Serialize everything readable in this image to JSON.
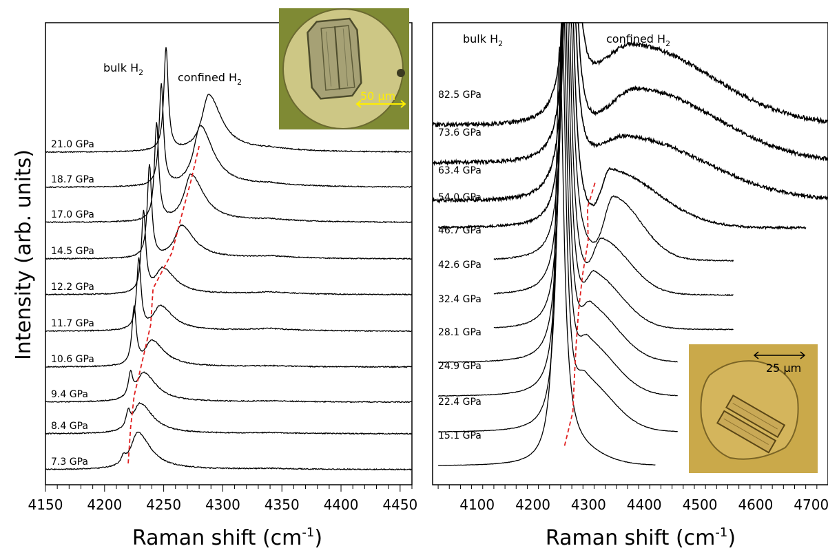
{
  "colors": {
    "trace": "#000000",
    "guide": "#e02020",
    "scalebar_left": "#ffee00",
    "scalebar_right": "#000000",
    "micrograph_left_bg": "#c9c07a",
    "micrograph_right_bg": "#c8a84a"
  },
  "chart_data": [
    {
      "type": "line",
      "title": "",
      "xlabel": "Raman shift (cm-1)",
      "xlabel_main": "Raman shift (cm",
      "xlabel_sup": "-1",
      "xlabel_close": ")",
      "ylabel": "Intensity (arb. units)",
      "xlim": [
        4150,
        4460
      ],
      "xticks": [
        "4150",
        "4200",
        "4250",
        "4300",
        "4350",
        "4400",
        "4450"
      ],
      "annotations": {
        "bulk": "bulk H",
        "bulk_sub": "2",
        "confined": "confined H",
        "confined_sub": "2"
      },
      "inset": {
        "scalebar_label": "50 μm"
      },
      "pressures": [
        "21.0 GPa",
        "18.7  GPa",
        "17.0 GPa",
        "14.5 GPa",
        "12.2 GPa",
        "11.7 GPa",
        "10.6 GPa",
        "9.4 GPa",
        "8.4 GPa",
        "7.3 GPa"
      ],
      "series": [
        {
          "label": "21.0 GPa",
          "x_range": [
            4150,
            4460
          ],
          "bulk_peak": 4252,
          "bulk_height": 5.0,
          "confined_peak": 4288,
          "confined_height": 2.75
        },
        {
          "label": "18.7  GPa",
          "x_range": [
            4150,
            4460
          ],
          "bulk_peak": 4248,
          "bulk_height": 4.9,
          "confined_peak": 4281,
          "confined_height": 2.95
        },
        {
          "label": "17.0 GPa",
          "x_range": [
            4150,
            4460
          ],
          "bulk_peak": 4244,
          "bulk_height": 4.7,
          "confined_peak": 4273,
          "confined_height": 2.3
        },
        {
          "label": "14.5 GPa",
          "x_range": [
            4150,
            4460
          ],
          "bulk_peak": 4238,
          "bulk_height": 4.5,
          "confined_peak": 4265,
          "confined_height": 1.6
        },
        {
          "label": "12.2 GPa",
          "x_range": [
            4150,
            4460
          ],
          "bulk_peak": 4233,
          "bulk_height": 3.9,
          "confined_peak": 4249,
          "confined_height": 1.25
        },
        {
          "label": "11.7 GPa",
          "x_range": [
            4150,
            4460
          ],
          "bulk_peak": 4229,
          "bulk_height": 3.4,
          "confined_peak": 4247,
          "confined_height": 1.2
        },
        {
          "label": "10.6 GPa",
          "x_range": [
            4150,
            4460
          ],
          "bulk_peak": 4225,
          "bulk_height": 2.75,
          "confined_peak": 4240,
          "confined_height": 1.25
        },
        {
          "label": "9.4 GPa",
          "x_range": [
            4150,
            4460
          ],
          "bulk_peak": 4222,
          "bulk_height": 1.15,
          "confined_peak": 4233,
          "confined_height": 1.4
        },
        {
          "label": "8.4 GPa",
          "x_range": [
            4150,
            4460
          ],
          "bulk_peak": 4220,
          "bulk_height": 0.75,
          "confined_peak": 4230,
          "confined_height": 1.45
        },
        {
          "label": "7.3 GPa",
          "x_range": [
            4150,
            4460
          ],
          "bulk_peak": 4216,
          "bulk_height": 0.35,
          "confined_peak": 4228,
          "confined_height": 1.8
        }
      ]
    },
    {
      "type": "line",
      "title": "",
      "xlabel": "Raman shift (cm-1)",
      "xlabel_main": "Raman shift (cm",
      "xlabel_sup": "-1",
      "xlabel_close": ")",
      "xlim": [
        4020,
        4730
      ],
      "xticks": [
        "4100",
        "4200",
        "4300",
        "4400",
        "4500",
        "4600",
        "4700"
      ],
      "annotations": {
        "bulk": "bulk H",
        "bulk_sub": "2",
        "confined": "confined H",
        "confined_sub": "2"
      },
      "inset": {
        "scalebar_label": "25 μm"
      },
      "pressures": [
        "82.5 GPa",
        "73.6 GPa",
        "63.4 GPa",
        "54.0 GPa",
        "46.7 GPa",
        "42.6 GPa",
        "32.4 GPa",
        "28.1 GPa",
        "24.9 GPa",
        "22.4 GPa",
        "15.1 GPa"
      ],
      "series": [
        {
          "label": "82.5 GPa",
          "x_range": [
            4020,
            4730
          ],
          "bulk_peak": 4270,
          "confined_peak": 4380,
          "confined_height": 1.9
        },
        {
          "label": "73.6 GPa",
          "x_range": [
            4020,
            4730
          ],
          "bulk_peak": 4268,
          "confined_peak": 4390,
          "confined_height": 1.75
        },
        {
          "label": "63.4 GPa",
          "x_range": [
            4020,
            4730
          ],
          "bulk_peak": 4266,
          "confined_peak": 4370,
          "confined_height": 1.5
        },
        {
          "label": "54.0 GPa",
          "x_range": [
            4030,
            4690
          ],
          "bulk_peak": 4264,
          "confined_peak": 4340,
          "confined_height": 1.3
        },
        {
          "label": "46.7 GPa",
          "x_range": [
            4130,
            4560
          ],
          "bulk_peak": 4262,
          "confined_peak": 4345,
          "confined_height": 1.45
        },
        {
          "label": "42.6 GPa",
          "x_range": [
            4130,
            4560
          ],
          "bulk_peak": 4260,
          "confined_peak": 4325,
          "confined_height": 1.2
        },
        {
          "label": "32.4 GPa",
          "x_range": [
            4130,
            4560
          ],
          "bulk_peak": 4258,
          "confined_peak": 4312,
          "confined_height": 1.15
        },
        {
          "label": "28.1 GPa",
          "x_range": [
            4030,
            4460
          ],
          "bulk_peak": 4256,
          "confined_peak": 4305,
          "confined_height": 1.15
        },
        {
          "label": "24.9 GPa",
          "x_range": [
            4030,
            4460
          ],
          "bulk_peak": 4254,
          "confined_peak": 4300,
          "confined_height": 1.1
        },
        {
          "label": "22.4 GPa",
          "x_range": [
            4030,
            4460
          ],
          "bulk_peak": 4252,
          "confined_peak": 4296,
          "confined_height": 1.05
        },
        {
          "label": "15.1 GPa",
          "x_range": [
            4030,
            4420
          ],
          "bulk_peak": 4248,
          "confined_peak": 4268,
          "confined_height": 0.35
        }
      ]
    }
  ]
}
